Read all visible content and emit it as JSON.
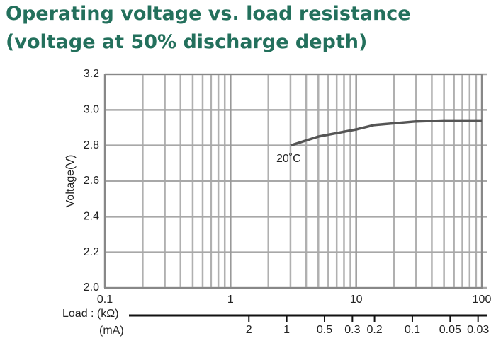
{
  "chart_data": {
    "type": "line",
    "title": "Operating voltage vs. load resistance",
    "subtitle": "(voltage at 50% discharge depth)",
    "x_label": "Load : (kΩ)",
    "x2_label": "(mA)",
    "y_label": "Voltage(V)",
    "annotation": "20˚C",
    "x_log": true,
    "grid": true,
    "xlim": [
      0.1,
      100
    ],
    "xticks": [
      0.1,
      1,
      10,
      100
    ],
    "xminorticks": [
      0.2,
      0.3,
      0.4,
      0.5,
      0.6,
      0.7,
      0.8,
      0.9,
      2,
      3,
      4,
      5,
      6,
      7,
      8,
      9,
      20,
      30,
      40,
      50,
      60,
      70,
      80,
      90
    ],
    "x2lim": [
      28,
      0.028
    ],
    "x2ticks": [
      2,
      1,
      0.5,
      0.3,
      0.2,
      0.1,
      0.05,
      0.03
    ],
    "ylim": [
      2.0,
      3.2
    ],
    "yticks": [
      {
        "value": 2.0,
        "label": "2.0"
      },
      2.2,
      2.4,
      2.6,
      2.8,
      {
        "value": 3.0,
        "label": "3.0"
      },
      3.2
    ],
    "series": [
      {
        "name": "20˚C",
        "color": "#555555",
        "x": [
          3,
          5,
          10,
          14,
          30,
          50,
          100
        ],
        "values": [
          2.8,
          2.85,
          2.89,
          2.915,
          2.935,
          2.94,
          2.94
        ]
      }
    ]
  }
}
